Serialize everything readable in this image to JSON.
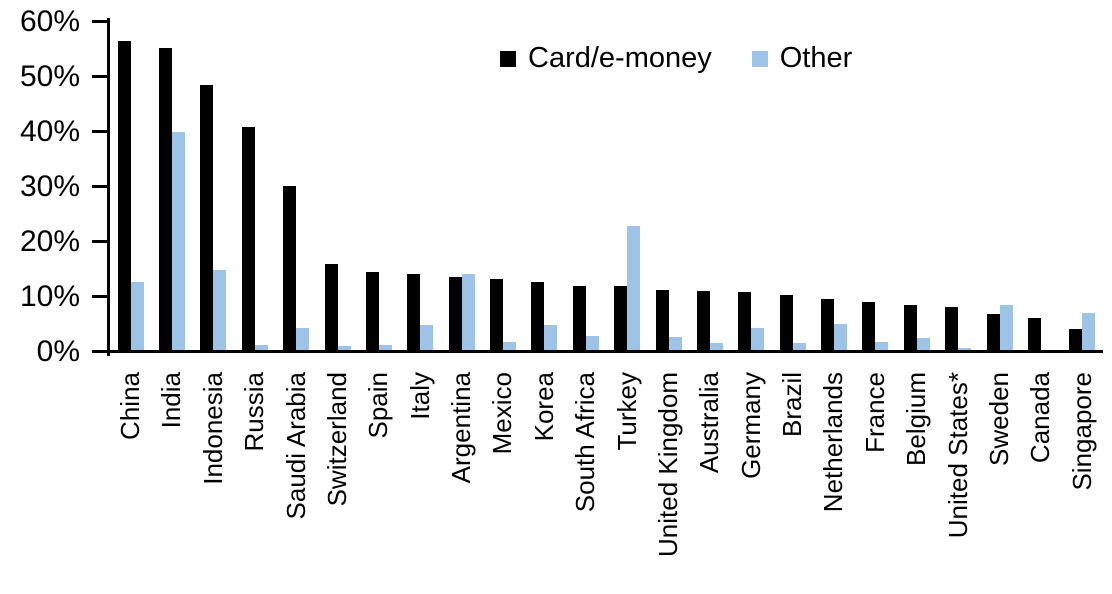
{
  "chart_data": {
    "type": "bar",
    "title": "",
    "xlabel": "",
    "ylabel": "",
    "categories": [
      "China",
      "India",
      "Indonesia",
      "Russia",
      "Saudi Arabia",
      "Switzerland",
      "Spain",
      "Italy",
      "Argentina",
      "Mexico",
      "Korea",
      "South Africa",
      "Turkey",
      "United Kingdom",
      "Australia",
      "Germany",
      "Brazil",
      "Netherlands",
      "France",
      "Belgium",
      "United States*",
      "Sweden",
      "Canada",
      "Singapore"
    ],
    "series": [
      {
        "name": "Card/e-money",
        "color": "#000000",
        "values": [
          56.2,
          55.0,
          48.2,
          40.5,
          29.9,
          15.6,
          14.1,
          13.9,
          13.3,
          12.9,
          12.3,
          11.7,
          11.6,
          11.0,
          10.8,
          10.6,
          10.0,
          9.3,
          8.7,
          8.2,
          7.9,
          6.6,
          5.9,
          3.9
        ]
      },
      {
        "name": "Other",
        "color": "#9DC3E6",
        "values": [
          12.4,
          39.7,
          14.6,
          1.0,
          4.0,
          0.8,
          1.0,
          4.6,
          13.8,
          1.4,
          4.6,
          2.5,
          22.5,
          2.4,
          1.2,
          4.0,
          1.2,
          4.8,
          1.5,
          2.2,
          0.4,
          8.2,
          0.0,
          6.8
        ]
      }
    ],
    "y_axis": {
      "tick_labels": [
        "0%",
        "10%",
        "20%",
        "30%",
        "40%",
        "50%",
        "60%"
      ],
      "tick_values": [
        0,
        10,
        20,
        30,
        40,
        50,
        60
      ],
      "ylim": [
        0,
        60
      ],
      "unit": "%"
    },
    "legend_position": "top-center",
    "grid": false,
    "background_color": "#FFFFFF",
    "axis_color": "#000000"
  }
}
